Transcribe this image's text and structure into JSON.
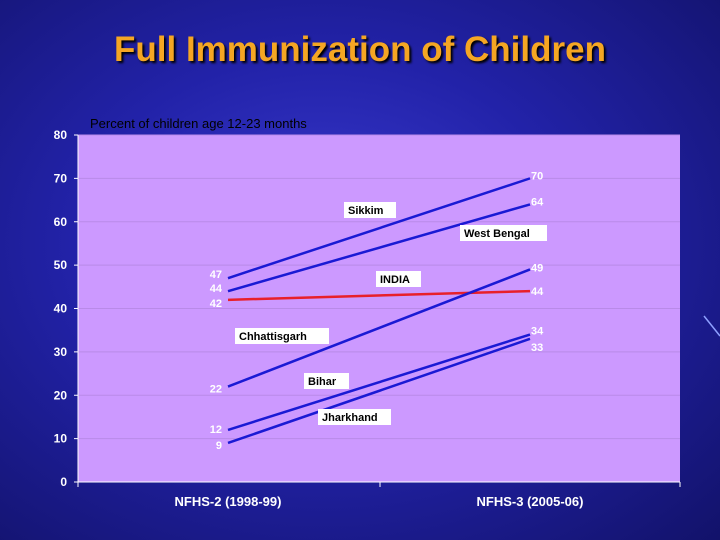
{
  "slide": {
    "title": "Full Immunization of Children",
    "subtitle": "Percent of children age 12-23 months"
  },
  "chart_data": {
    "type": "line",
    "categories": [
      "NFHS-2 (1998-99)",
      "NFHS-3 (2005-06)"
    ],
    "ylim": [
      0,
      80
    ],
    "yticks": [
      0,
      10,
      20,
      30,
      40,
      50,
      60,
      70,
      80
    ],
    "grid": true,
    "legend": "inline labels",
    "plot_background": "#cc99ff",
    "series": [
      {
        "name": "Sikkim",
        "values": [
          47,
          70
        ],
        "color": "#1a1ad4"
      },
      {
        "name": "West Bengal",
        "values": [
          44,
          64
        ],
        "color": "#1a1ad4"
      },
      {
        "name": "INDIA",
        "values": [
          42,
          44
        ],
        "color": "#e8202a"
      },
      {
        "name": "Chhattisgarh",
        "values": [
          22,
          49
        ],
        "color": "#1a1ad4"
      },
      {
        "name": "Bihar",
        "values": [
          12,
          34
        ],
        "color": "#1a1ad4"
      },
      {
        "name": "Jharkhand",
        "values": [
          9,
          33
        ],
        "color": "#1a1ad4"
      }
    ]
  }
}
